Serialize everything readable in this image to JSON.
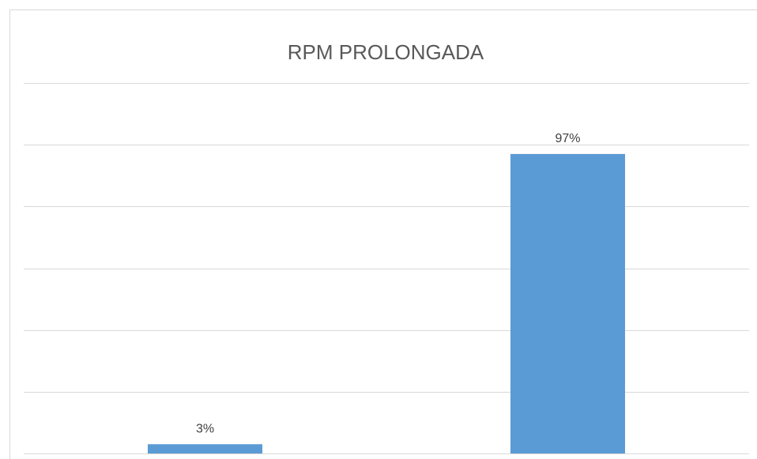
{
  "chart_data": {
    "type": "bar",
    "title": "RPM PROLONGADA",
    "categories": [
      null,
      null
    ],
    "values": [
      3,
      97
    ],
    "value_labels": [
      "3%",
      "97%"
    ],
    "color": "#5b9bd5",
    "ylim": [
      0,
      120
    ],
    "yticks": [
      0,
      20,
      40,
      60,
      80,
      100,
      120
    ],
    "grid": true
  }
}
